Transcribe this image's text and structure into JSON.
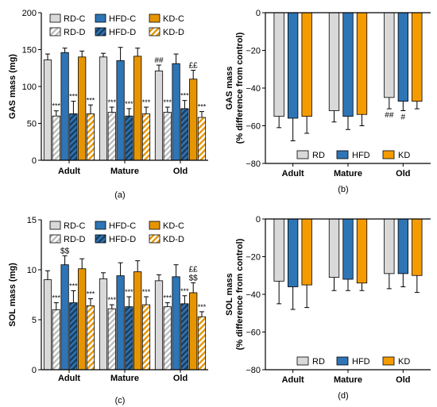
{
  "colors": {
    "RD": "#d9d9d9",
    "HFD": "#2e75b6",
    "KD": "#e69500",
    "KD_pct": "#f59b00"
  },
  "chart_data": [
    {
      "id": "a",
      "type": "bar",
      "panel_label": "(a)",
      "ylabel": "GAS mass (mg)",
      "ylim": [
        0,
        200
      ],
      "yticks": [
        0,
        50,
        100,
        150,
        200
      ],
      "categories": [
        "Adult",
        "Mature",
        "Old"
      ],
      "legend": [
        "RD-C",
        "HFD-C",
        "KD-C",
        "RD-D",
        "HFD-D",
        "KD-D"
      ],
      "series": [
        {
          "name": "RD-C",
          "group": "RD",
          "hatched": false,
          "values": [
            136,
            140,
            121
          ],
          "errors": [
            8,
            5,
            8
          ],
          "labels": [
            "",
            "",
            "##"
          ]
        },
        {
          "name": "RD-D",
          "group": "RD",
          "hatched": true,
          "values": [
            60,
            65,
            65
          ],
          "errors": [
            7,
            7,
            7
          ],
          "labels": [
            "***",
            "***",
            "***"
          ]
        },
        {
          "name": "HFD-C",
          "group": "HFD",
          "hatched": false,
          "values": [
            146,
            135,
            131
          ],
          "errors": [
            6,
            18,
            13
          ],
          "labels": [
            "",
            "",
            ""
          ]
        },
        {
          "name": "HFD-D",
          "group": "HFD",
          "hatched": true,
          "values": [
            63,
            60,
            70
          ],
          "errors": [
            17,
            10,
            11
          ],
          "labels": [
            "***",
            "***",
            "***"
          ]
        },
        {
          "name": "KD-C",
          "group": "KD",
          "hatched": false,
          "values": [
            140,
            141,
            110
          ],
          "errors": [
            8,
            11,
            12
          ],
          "labels": [
            "",
            "",
            "££"
          ]
        },
        {
          "name": "KD-D",
          "group": "KD",
          "hatched": true,
          "values": [
            63,
            63,
            58
          ],
          "errors": [
            12,
            9,
            8
          ],
          "labels": [
            "***",
            "***",
            "***"
          ]
        }
      ]
    },
    {
      "id": "b",
      "type": "bar",
      "panel_label": "(b)",
      "ylabel": "GAS mass",
      "ylabel2": "(% difference from control)",
      "ylim": [
        -80,
        0
      ],
      "yticks": [
        0,
        -20,
        -40,
        -60,
        -80
      ],
      "categories": [
        "Adult",
        "Mature",
        "Old"
      ],
      "legend": [
        "RD",
        "HFD",
        "KD"
      ],
      "series": [
        {
          "name": "RD",
          "group": "RD",
          "values": [
            -55,
            -52,
            -45
          ],
          "errors": [
            6,
            6,
            6
          ],
          "labels": [
            "",
            "",
            "##"
          ]
        },
        {
          "name": "HFD",
          "group": "HFD",
          "values": [
            -56,
            -55,
            -47
          ],
          "errors": [
            12,
            7,
            5
          ],
          "labels": [
            "",
            "",
            "#"
          ]
        },
        {
          "name": "KD",
          "group": "KD_pct",
          "values": [
            -55,
            -54,
            -47
          ],
          "errors": [
            9,
            6,
            4
          ],
          "labels": [
            "",
            "",
            ""
          ]
        }
      ]
    },
    {
      "id": "c",
      "type": "bar",
      "panel_label": "(c)",
      "ylabel": "SOL mass (mg)",
      "ylim": [
        0,
        15
      ],
      "yticks": [
        0,
        5,
        10,
        15
      ],
      "categories": [
        "Adult",
        "Mature",
        "Old"
      ],
      "legend": [
        "RD-C",
        "HFD-C",
        "KD-C",
        "RD-D",
        "HFD-D",
        "KD-D"
      ],
      "series": [
        {
          "name": "RD-C",
          "group": "RD",
          "hatched": false,
          "values": [
            9.0,
            9.1,
            8.9
          ],
          "errors": [
            0.9,
            0.6,
            0.6
          ],
          "labels": [
            "",
            "",
            ""
          ]
        },
        {
          "name": "RD-D",
          "group": "RD",
          "hatched": true,
          "values": [
            6.0,
            6.1,
            6.3
          ],
          "errors": [
            0.7,
            0.4,
            0.4
          ],
          "labels": [
            "***",
            "***",
            "***"
          ]
        },
        {
          "name": "HFD-C",
          "group": "HFD",
          "hatched": false,
          "values": [
            10.5,
            9.4,
            9.3
          ],
          "errors": [
            0.9,
            1.3,
            1.2
          ],
          "labels": [
            "$$",
            "",
            ""
          ]
        },
        {
          "name": "HFD-D",
          "group": "HFD",
          "hatched": true,
          "values": [
            6.7,
            6.3,
            6.6
          ],
          "errors": [
            1.2,
            1.0,
            0.8
          ],
          "labels": [
            "***",
            "***",
            "***"
          ]
        },
        {
          "name": "KD-C",
          "group": "KD",
          "hatched": false,
          "values": [
            10.1,
            9.8,
            7.7
          ],
          "errors": [
            1.0,
            1.1,
            1.0
          ],
          "labels": [
            "",
            "",
            "££\n$$"
          ]
        },
        {
          "name": "KD-D",
          "group": "KD",
          "hatched": true,
          "values": [
            6.4,
            6.5,
            5.3
          ],
          "errors": [
            0.7,
            0.8,
            0.5
          ],
          "labels": [
            "***",
            "***",
            "***"
          ]
        }
      ]
    },
    {
      "id": "d",
      "type": "bar",
      "panel_label": "(d)",
      "ylabel": "SOL mass",
      "ylabel2": "(% difference from control)",
      "ylim": [
        -80,
        0
      ],
      "yticks": [
        0,
        -20,
        -40,
        -60,
        -80
      ],
      "categories": [
        "Adult",
        "Mature",
        "Old"
      ],
      "legend": [
        "RD",
        "HFD",
        "KD"
      ],
      "series": [
        {
          "name": "RD",
          "group": "RD",
          "values": [
            -33,
            -31,
            -29
          ],
          "errors": [
            12,
            7,
            8
          ],
          "labels": [
            "",
            "",
            ""
          ]
        },
        {
          "name": "HFD",
          "group": "HFD",
          "values": [
            -36,
            -32,
            -29
          ],
          "errors": [
            12,
            6,
            7
          ],
          "labels": [
            "",
            "",
            ""
          ]
        },
        {
          "name": "KD",
          "group": "KD_pct",
          "values": [
            -35,
            -34,
            -30
          ],
          "errors": [
            12,
            4,
            9
          ],
          "labels": [
            "",
            "",
            ""
          ]
        }
      ]
    }
  ]
}
